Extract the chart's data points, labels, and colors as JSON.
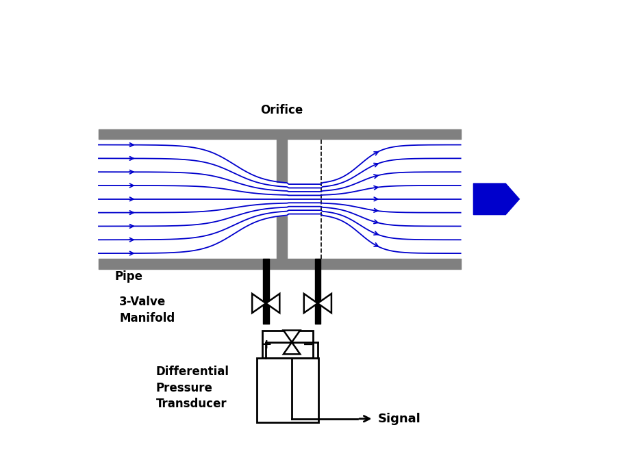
{
  "bg_color": "#ffffff",
  "pipe_color": "#808080",
  "flow_color": "#0000cc",
  "black": "#000000",
  "labels": {
    "signal": "Signal",
    "transducer": "Differential\nPressure\nTransducer",
    "manifold": "3-Valve\nManifold",
    "pipe": "Pipe",
    "orifice": "Orifice"
  }
}
